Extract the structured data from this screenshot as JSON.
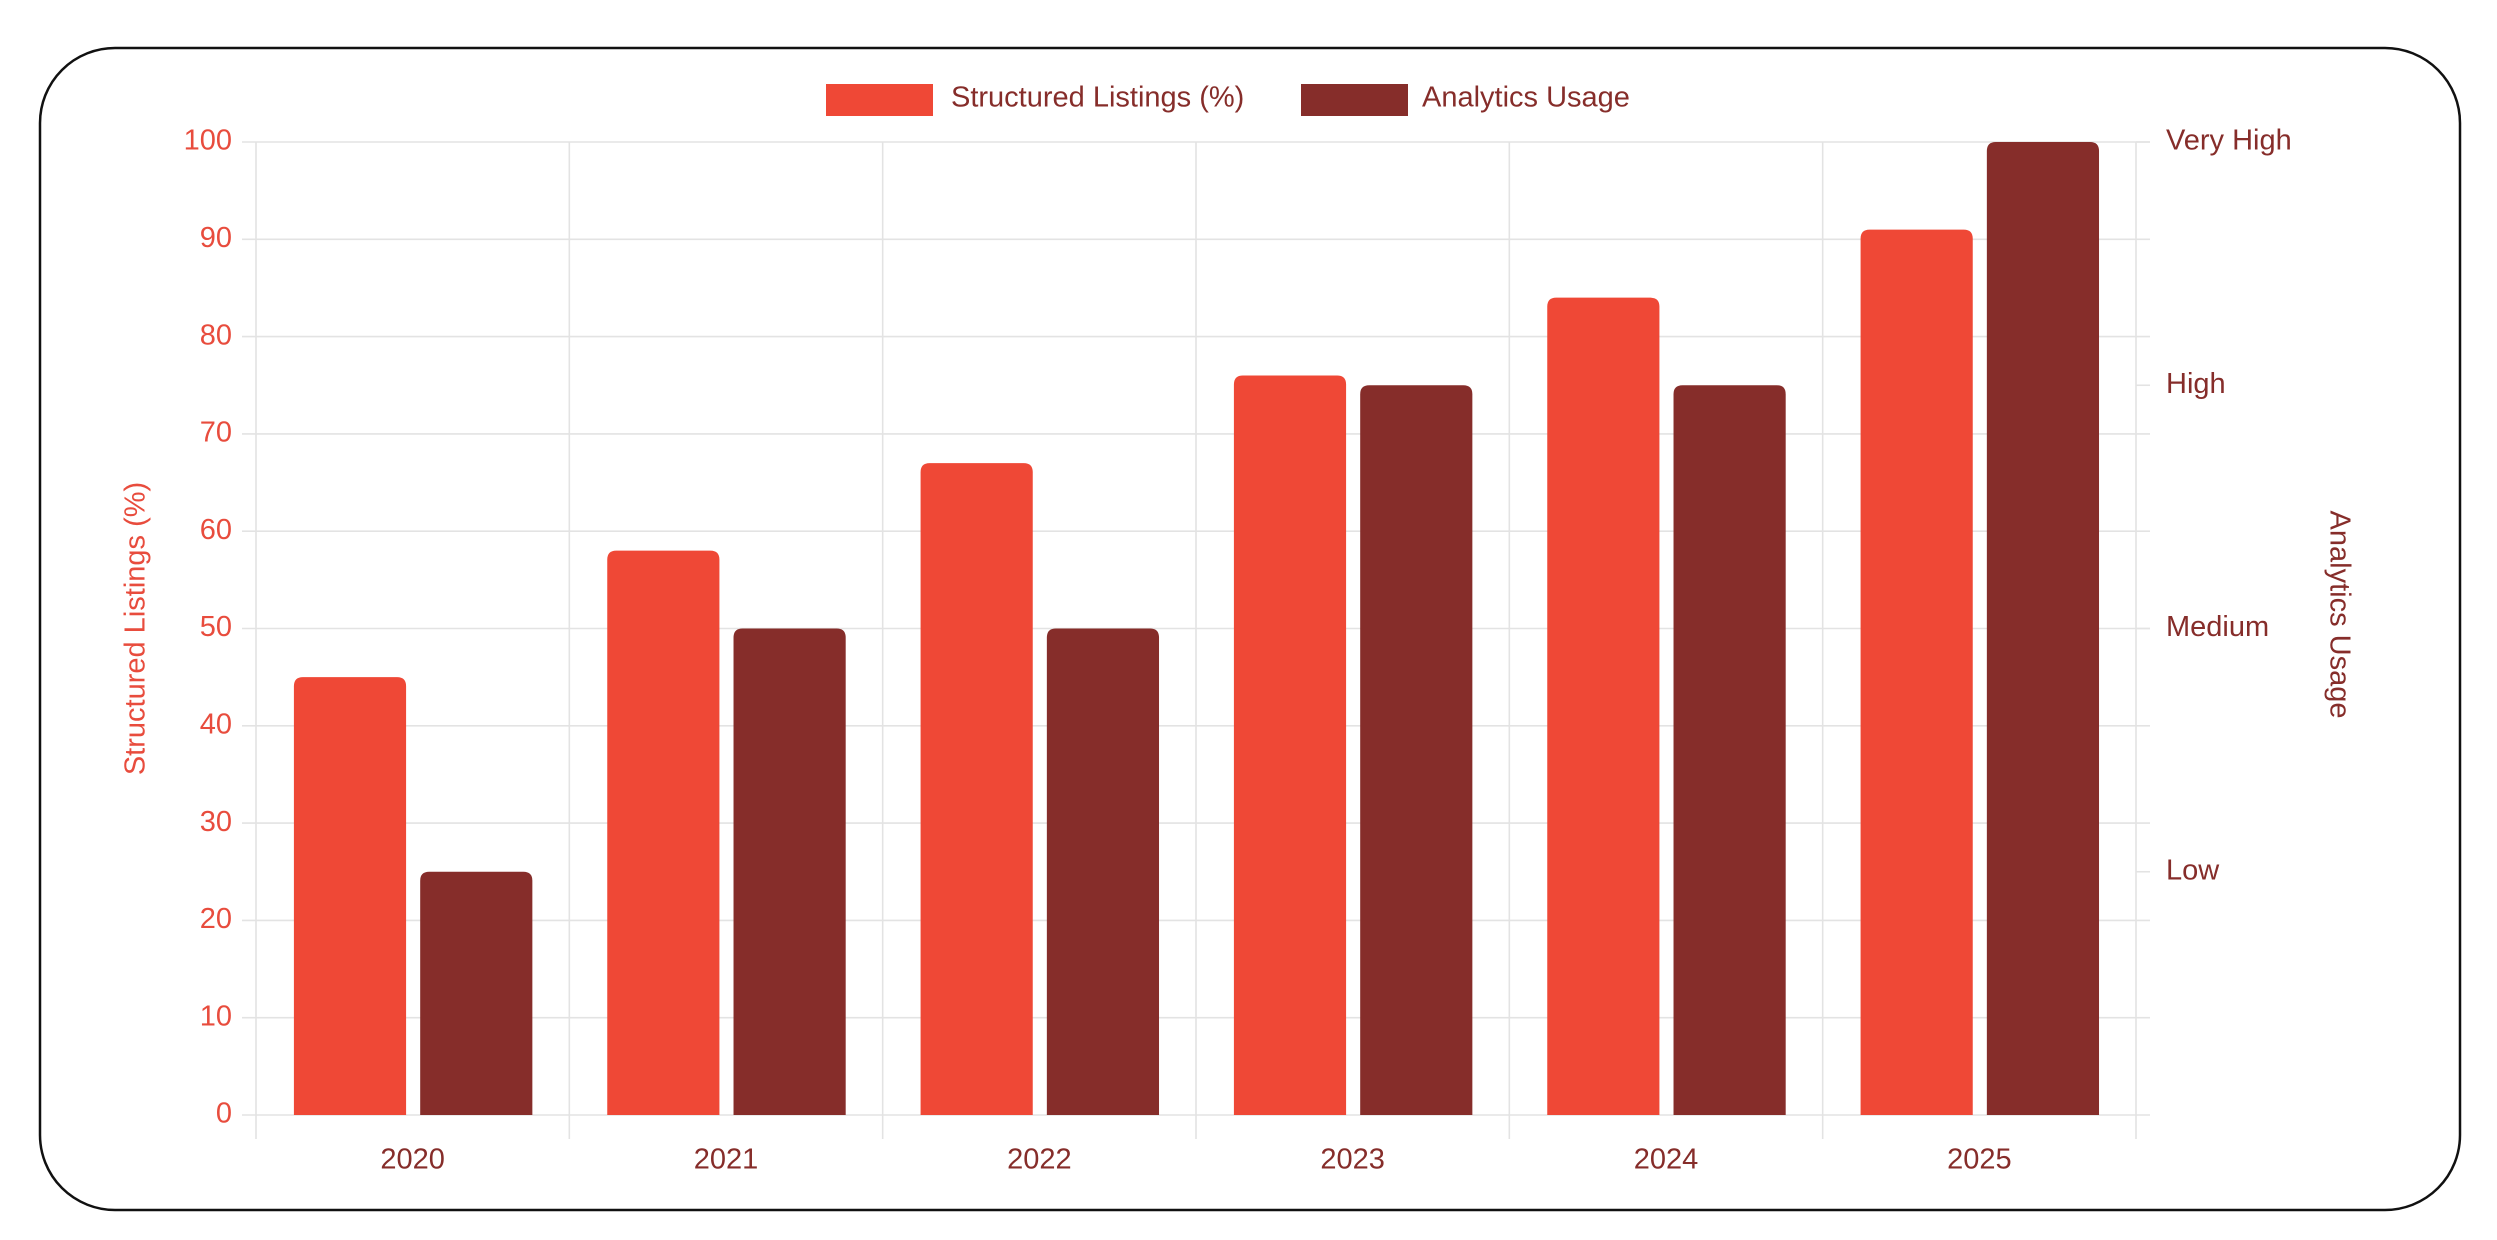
{
  "chart_data": {
    "type": "bar",
    "categories": [
      "2020",
      "2021",
      "2022",
      "2023",
      "2024",
      "2025"
    ],
    "series": [
      {
        "name": "Structured Listings (%)",
        "color": "#ef4836",
        "values": [
          45,
          58,
          67,
          76,
          84,
          91
        ]
      },
      {
        "name": "Analytics Usage",
        "color": "#862d2a",
        "axis": "y2",
        "values": [
          25,
          50,
          50,
          75,
          75,
          100
        ]
      }
    ],
    "ylabel": "Structured Listings (%)",
    "y2label": "Analytics Usage",
    "ylim": [
      0,
      100
    ],
    "yticks": [
      0,
      10,
      20,
      30,
      40,
      50,
      60,
      70,
      80,
      90,
      100
    ],
    "y2lim": [
      0,
      100
    ],
    "y2ticks": [
      {
        "value": 25,
        "label": "Low"
      },
      {
        "value": 50,
        "label": "Medium"
      },
      {
        "value": 75,
        "label": "High"
      },
      {
        "value": 100,
        "label": "Very High"
      }
    ],
    "ycolor": "#e84c3d",
    "y2color": "#862d2a",
    "grid": true,
    "legend": "top"
  }
}
